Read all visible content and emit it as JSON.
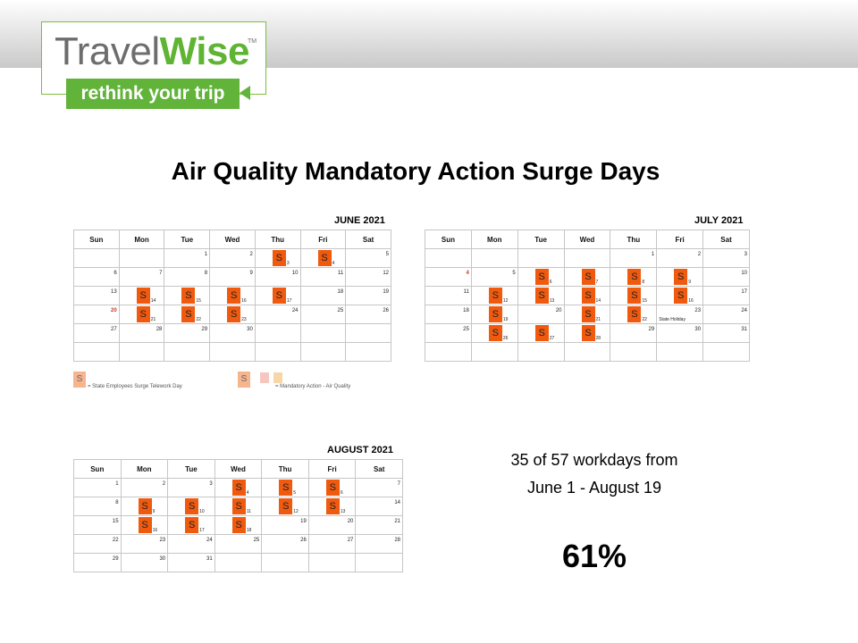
{
  "logo": {
    "part1": "Travel",
    "part2": "Wise",
    "tm": "TM",
    "tagline": "rethink your trip"
  },
  "title": "Air Quality Mandatory Action Surge Days",
  "weekdays": [
    "Sun",
    "Mon",
    "Tue",
    "Wed",
    "Thu",
    "Fri",
    "Sat"
  ],
  "colors": {
    "surge": "#f05a0f",
    "logo_green": "#62b33a",
    "logo_gray": "#6d6d6d"
  },
  "calendars": [
    {
      "id": "june",
      "title": "JUNE 2021",
      "rows": [
        [
          {
            "d": ""
          },
          {
            "d": ""
          },
          {
            "d": "1"
          },
          {
            "d": "2"
          },
          {
            "d": "3",
            "s": true
          },
          {
            "d": "4",
            "s": true,
            "red": true
          },
          {
            "d": "5"
          }
        ],
        [
          {
            "d": "6"
          },
          {
            "d": "7"
          },
          {
            "d": "8"
          },
          {
            "d": "9"
          },
          {
            "d": "10"
          },
          {
            "d": "11"
          },
          {
            "d": "12"
          }
        ],
        [
          {
            "d": "13"
          },
          {
            "d": "14",
            "s": true
          },
          {
            "d": "15",
            "s": true
          },
          {
            "d": "16",
            "s": true
          },
          {
            "d": "17",
            "s": true
          },
          {
            "d": "18"
          },
          {
            "d": "19"
          }
        ],
        [
          {
            "d": "20",
            "red": true
          },
          {
            "d": "21",
            "s": true
          },
          {
            "d": "22",
            "s": true
          },
          {
            "d": "23",
            "s": true
          },
          {
            "d": "24"
          },
          {
            "d": "25"
          },
          {
            "d": "26"
          }
        ],
        [
          {
            "d": "27"
          },
          {
            "d": "28"
          },
          {
            "d": "29"
          },
          {
            "d": "30"
          },
          {
            "d": ""
          },
          {
            "d": ""
          },
          {
            "d": ""
          }
        ],
        [
          {
            "d": ""
          },
          {
            "d": ""
          },
          {
            "d": ""
          },
          {
            "d": ""
          },
          {
            "d": ""
          },
          {
            "d": ""
          },
          {
            "d": ""
          }
        ]
      ]
    },
    {
      "id": "july",
      "title": "JULY 2021",
      "rows": [
        [
          {
            "d": ""
          },
          {
            "d": ""
          },
          {
            "d": ""
          },
          {
            "d": ""
          },
          {
            "d": "1"
          },
          {
            "d": "2"
          },
          {
            "d": "3"
          }
        ],
        [
          {
            "d": "4",
            "red": true
          },
          {
            "d": "5"
          },
          {
            "d": "6",
            "s": true
          },
          {
            "d": "7",
            "s": true
          },
          {
            "d": "8",
            "s": true
          },
          {
            "d": "9",
            "s": true
          },
          {
            "d": "10"
          }
        ],
        [
          {
            "d": "11"
          },
          {
            "d": "12",
            "s": true
          },
          {
            "d": "13",
            "s": true
          },
          {
            "d": "14",
            "s": true
          },
          {
            "d": "15",
            "s": true
          },
          {
            "d": "16",
            "s": true
          },
          {
            "d": "17"
          }
        ],
        [
          {
            "d": "18"
          },
          {
            "d": "19",
            "s": true
          },
          {
            "d": "20"
          },
          {
            "d": "21",
            "s": true
          },
          {
            "d": "22",
            "s": true
          },
          {
            "d": "23",
            "note": "State Holiday"
          },
          {
            "d": "24"
          }
        ],
        [
          {
            "d": "25"
          },
          {
            "d": "26",
            "s": true
          },
          {
            "d": "27",
            "s": true
          },
          {
            "d": "28",
            "s": true
          },
          {
            "d": "29"
          },
          {
            "d": "30"
          },
          {
            "d": "31"
          }
        ],
        [
          {
            "d": ""
          },
          {
            "d": ""
          },
          {
            "d": ""
          },
          {
            "d": ""
          },
          {
            "d": ""
          },
          {
            "d": ""
          },
          {
            "d": ""
          }
        ]
      ]
    },
    {
      "id": "august",
      "title": "AUGUST 2021",
      "rows": [
        [
          {
            "d": "1"
          },
          {
            "d": "2"
          },
          {
            "d": "3"
          },
          {
            "d": "4",
            "s": true
          },
          {
            "d": "5",
            "s": true
          },
          {
            "d": "6",
            "s": true
          },
          {
            "d": "7"
          }
        ],
        [
          {
            "d": "8"
          },
          {
            "d": "9",
            "s": true
          },
          {
            "d": "10",
            "s": true
          },
          {
            "d": "11",
            "s": true
          },
          {
            "d": "12",
            "s": true
          },
          {
            "d": "13",
            "s": true
          },
          {
            "d": "14"
          }
        ],
        [
          {
            "d": "15"
          },
          {
            "d": "16",
            "s": true
          },
          {
            "d": "17",
            "s": true
          },
          {
            "d": "18",
            "s": true
          },
          {
            "d": "19"
          },
          {
            "d": "20"
          },
          {
            "d": "21"
          }
        ],
        [
          {
            "d": "22"
          },
          {
            "d": "23"
          },
          {
            "d": "24"
          },
          {
            "d": "25"
          },
          {
            "d": "26"
          },
          {
            "d": "27"
          },
          {
            "d": "28"
          }
        ],
        [
          {
            "d": "29"
          },
          {
            "d": "30"
          },
          {
            "d": "31"
          },
          {
            "d": ""
          },
          {
            "d": ""
          },
          {
            "d": ""
          },
          {
            "d": ""
          }
        ]
      ]
    }
  ],
  "legend": {
    "symbol": "S",
    "item1": "= State Employees Surge Telework Day",
    "item2": "= Mandatory Action - Air Quality"
  },
  "summary": {
    "line1": "35 of 57 workdays from",
    "line2": "June 1 - August  19",
    "percent": "61%"
  }
}
